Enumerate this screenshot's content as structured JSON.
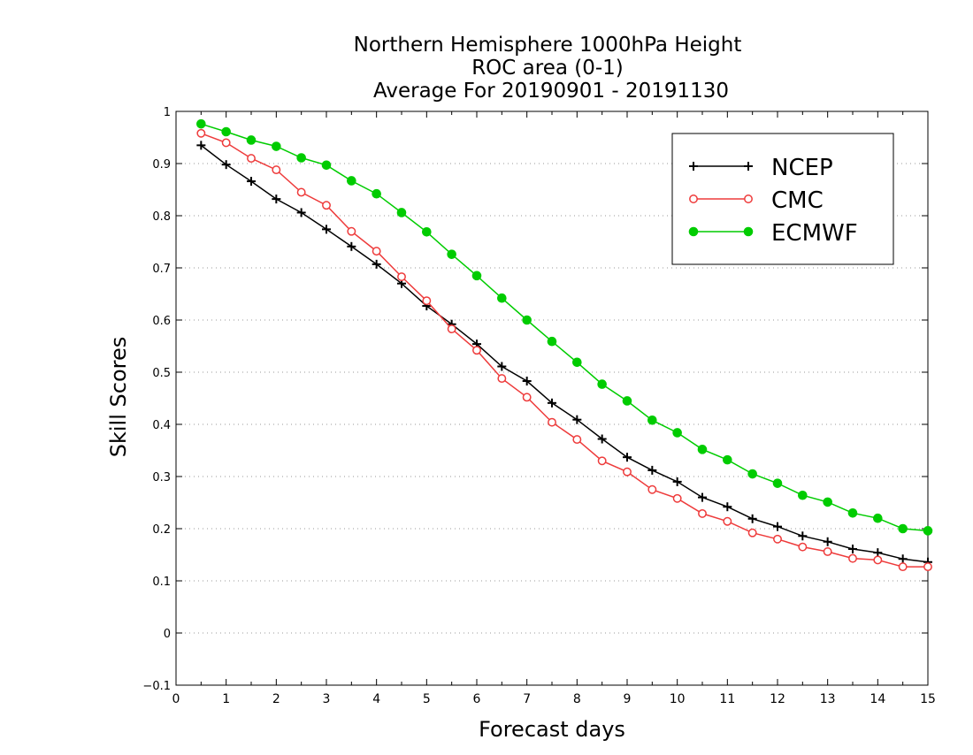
{
  "chart_data": {
    "type": "line",
    "title_lines": [
      "Northern Hemisphere 1000hPa Height",
      "ROC area (0-1)",
      "Average For 20190901 - 20191130"
    ],
    "xlabel": "Forecast days",
    "ylabel": "Skill Scores",
    "xlim": [
      0,
      15
    ],
    "ylim": [
      -0.1,
      1
    ],
    "x_ticks": [
      0,
      1,
      2,
      3,
      4,
      5,
      6,
      7,
      8,
      9,
      10,
      11,
      12,
      13,
      14,
      15
    ],
    "x_tick_labels": [
      "0",
      "1",
      "2",
      "3",
      "4",
      "5",
      "6",
      "7",
      "8",
      "9",
      "10",
      "11",
      "12",
      "13",
      "14",
      "15"
    ],
    "y_ticks": [
      -0.1,
      0,
      0.1,
      0.2,
      0.3,
      0.4,
      0.5,
      0.6,
      0.7,
      0.8,
      0.9,
      1
    ],
    "y_tick_labels": [
      "−0.1",
      "0",
      "0.1",
      "0.2",
      "0.3",
      "0.4",
      "0.5",
      "0.6",
      "0.7",
      "0.8",
      "0.9",
      "1"
    ],
    "grid": "horizontal-dotted",
    "legend_position": "top-right",
    "x": [
      0.5,
      1,
      1.5,
      2,
      2.5,
      3,
      3.5,
      4,
      4.5,
      5,
      5.5,
      6,
      6.5,
      7,
      7.5,
      8,
      8.5,
      9,
      9.5,
      10,
      10.5,
      11,
      11.5,
      12,
      12.5,
      13,
      13.5,
      14,
      14.5,
      15
    ],
    "series": [
      {
        "name": "NCEP",
        "color": "#000000",
        "marker": "plus",
        "values": [
          0.935,
          0.898,
          0.866,
          0.832,
          0.806,
          0.774,
          0.741,
          0.707,
          0.67,
          0.627,
          0.592,
          0.554,
          0.511,
          0.483,
          0.441,
          0.409,
          0.372,
          0.337,
          0.312,
          0.29,
          0.26,
          0.242,
          0.219,
          0.204,
          0.186,
          0.175,
          0.161,
          0.154,
          0.142,
          0.136
        ]
      },
      {
        "name": "CMC",
        "color": "#ee3b3b",
        "marker": "open-circle",
        "values": [
          0.958,
          0.94,
          0.91,
          0.888,
          0.845,
          0.82,
          0.77,
          0.732,
          0.683,
          0.637,
          0.583,
          0.542,
          0.488,
          0.452,
          0.404,
          0.371,
          0.33,
          0.309,
          0.275,
          0.258,
          0.229,
          0.214,
          0.192,
          0.18,
          0.165,
          0.156,
          0.143,
          0.14,
          0.127,
          0.127
        ]
      },
      {
        "name": "ECMWF",
        "color": "#00cc00",
        "marker": "filled-circle",
        "values": [
          0.976,
          0.961,
          0.945,
          0.933,
          0.911,
          0.897,
          0.867,
          0.842,
          0.806,
          0.769,
          0.726,
          0.685,
          0.642,
          0.6,
          0.559,
          0.519,
          0.477,
          0.445,
          0.408,
          0.384,
          0.352,
          0.332,
          0.305,
          0.287,
          0.264,
          0.251,
          0.23,
          0.22,
          0.2,
          0.196
        ]
      }
    ]
  }
}
